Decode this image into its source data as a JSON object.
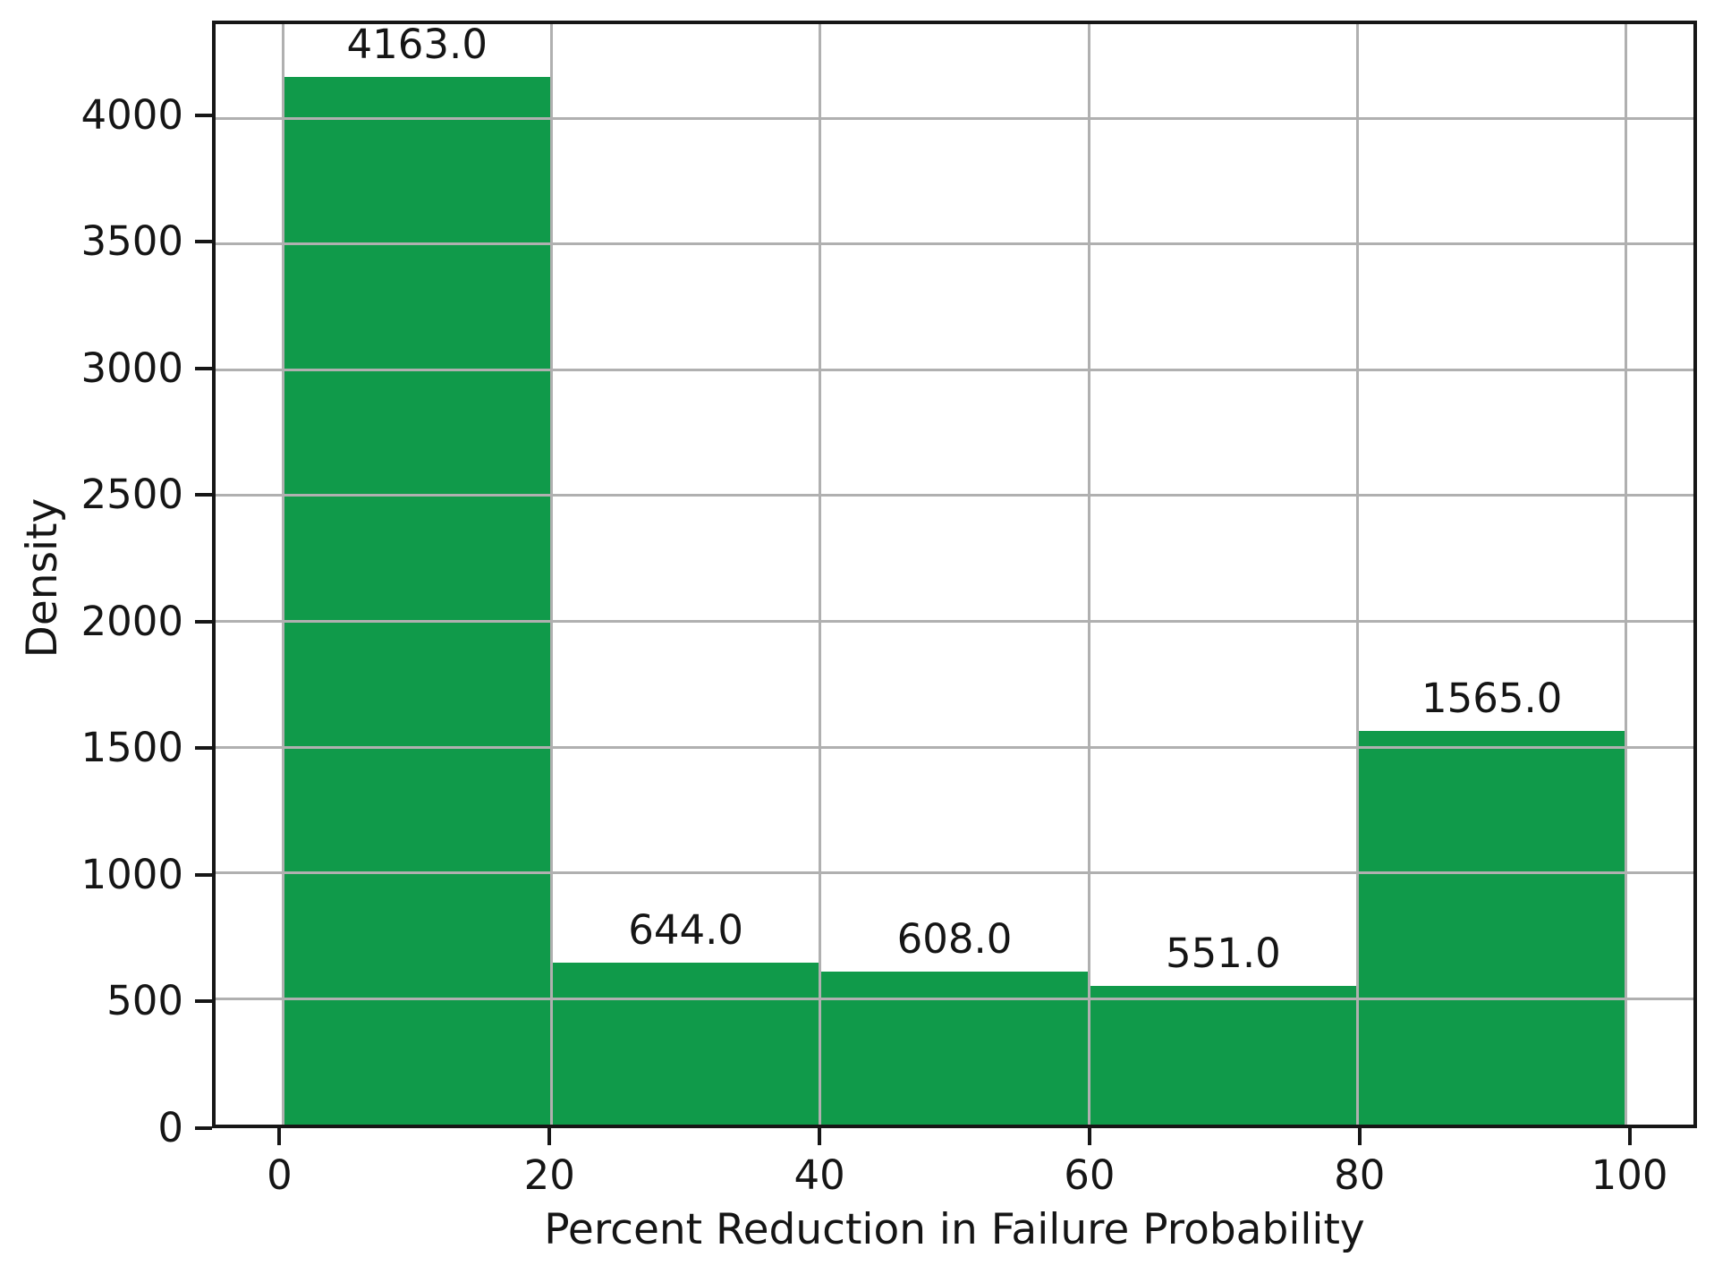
{
  "chart_data": {
    "type": "bar",
    "title": "",
    "xlabel": "Percent Reduction in Failure Probability",
    "ylabel": "Density",
    "bin_edges": [
      0,
      20,
      40,
      60,
      80,
      100
    ],
    "values": [
      4163,
      644,
      608,
      551,
      1565
    ],
    "bar_value_labels": [
      "4163.0",
      "644.0",
      "608.0",
      "551.0",
      "1565.0"
    ],
    "x_ticks": [
      "0",
      "20",
      "40",
      "60",
      "80",
      "100"
    ],
    "x_tick_values": [
      0,
      20,
      40,
      60,
      80,
      100
    ],
    "y_ticks": [
      "0",
      "500",
      "1000",
      "1500",
      "2000",
      "2500",
      "3000",
      "3500",
      "4000"
    ],
    "y_tick_values": [
      0,
      500,
      1000,
      1500,
      2000,
      2500,
      3000,
      3500,
      4000
    ],
    "xlim": [
      -5,
      105
    ],
    "ylim": [
      0,
      4374
    ],
    "grid": true,
    "grid_over_bars": true,
    "legend": "none",
    "bar_color": "#109a4a",
    "grid_color": "#b0b0b0",
    "axis_color": "#161616",
    "text_color": "#151515",
    "background_color": "#ffffff"
  }
}
